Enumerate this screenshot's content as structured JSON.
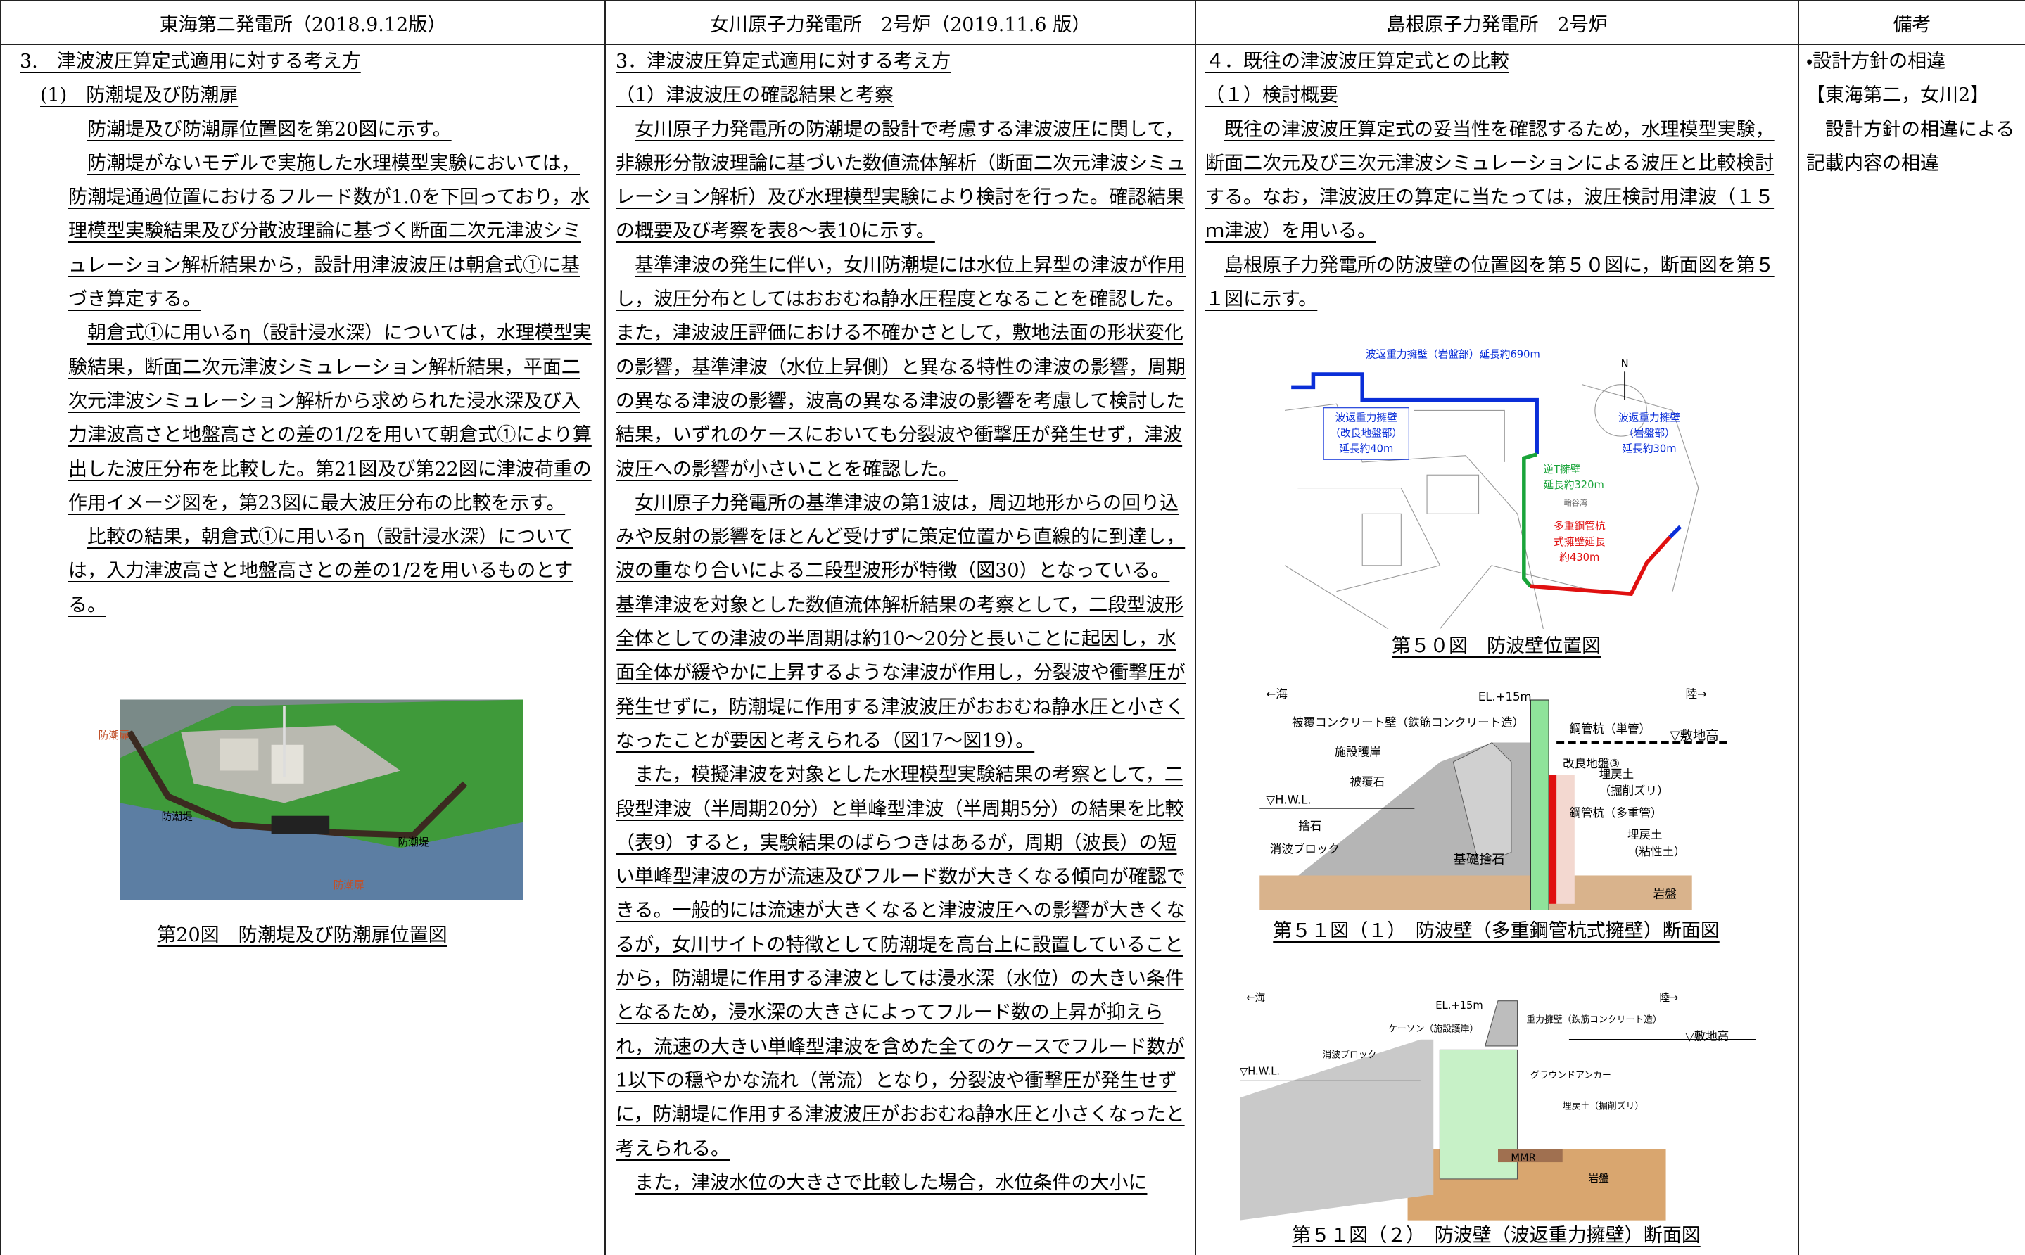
{
  "header": [
    "東海第二発電所（2018.9.12版）",
    "女川原子力発電所　2号炉（2019.11.6 版）",
    "島根原子力発電所　2号炉",
    "備考"
  ],
  "columns": [
    {
      "heading": "3.　津波波圧算定式適用に対する考え方",
      "subheading": "(1)　防潮堤及び防潮扉",
      "paragraphs": [
        "防潮堤及び防潮扉位置図を第20図に示す。",
        "防潮堤がないモデルで実施した水理模型実験においては，防潮堤通過位置におけるフルード数が1.0を下回っており，水理模型実験結果及び分散波理論に基づく断面二次元津波シミュレーション解析結果から，設計用津波波圧は朝倉式①に基づき算定する。",
        "朝倉式①に用いるη（設計浸水深）については，水理模型実験結果，断面二次元津波シミュレーション解析結果，平面二次元津波シミュレーション解析から求められた浸水深及び入力津波高さと地盤高さとの差の1/2を用いて朝倉式①により算出した波圧分布を比較した。第21図及び第22図に津波荷重の作用イメージ図を，第23図に最大波圧分布の比較を示す。",
        "比較の結果，朝倉式①に用いるη（設計浸水深）については，入力津波高さと地盤高さとの差の1/2を用いるものとする。"
      ],
      "figures": [
        {
          "labels": [
            "防潮扉",
            "防潮堤",
            "防潮堤",
            "防潮扉"
          ],
          "caption": "第20図　防潮堤及び防潮扉位置図"
        }
      ]
    },
    {
      "heading": "3．津波波圧算定式適用に対する考え方",
      "subheading": "（1）津波波圧の確認結果と考察",
      "paragraphs": [
        "女川原子力発電所の防潮堤の設計で考慮する津波波圧に関して，非線形分散波理論に基づいた数値流体解析（断面二次元津波シミュレーション解析）及び水理模型実験により検討を行った。確認結果の概要及び考察を表8～表10に示す。",
        "基準津波の発生に伴い，女川防潮堤には水位上昇型の津波が作用し，波圧分布としてはおおむね静水圧程度となることを確認した。また，津波波圧評価における不確かさとして，敷地法面の形状変化の影響，基準津波（水位上昇側）と異なる特性の津波の影響，周期の異なる津波の影響，波高の異なる津波の影響を考慮して検討した結果，いずれのケースにおいても分裂波や衝撃圧が発生せず，津波波圧への影響が小さいことを確認した。",
        "女川原子力発電所の基準津波の第1波は，周辺地形からの回り込みや反射の影響をほとんど受けずに策定位置から直線的に到達し，波の重なり合いによる二段型波形が特徴（図30）となっている。基準津波を対象とした数値流体解析結果の考察として，二段型波形全体としての津波の半周期は約10～20分と長いことに起因し，水面全体が緩やかに上昇するような津波が作用し，分裂波や衝撃圧が発生せずに，防潮堤に作用する津波波圧がおおむね静水圧と小さくなったことが要因と考えられる（図17～図19）。",
        "また，模擬津波を対象とした水理模型実験結果の考察として，二段型津波（半周期20分）と単峰型津波（半周期5分）の結果を比較（表9）すると，実験結果のばらつきはあるが，周期（波長）の短い単峰型津波の方が流速及びフルード数が大きくなる傾向が確認できる。一般的には流速が大きくなると津波波圧への影響が大きくなるが，女川サイトの特徴として防潮堤を高台上に設置していることから，防潮堤に作用する津波としては浸水深（水位）の大きい条件となるため，浸水深の大きさによってフルード数の上昇が抑えられ，流速の大きい単峰型津波を含めた全てのケースでフルード数が1以下の穏やかな流れ（常流）となり，分裂波や衝撃圧が発生せずに，防潮堤に作用する津波波圧がおおむね静水圧と小さくなったと考えられる。",
        "また，津波水位の大きさで比較した場合，水位条件の大小に"
      ],
      "figures": []
    },
    {
      "heading": "４．既往の津波波圧算定式との比較",
      "subheading": "（１）検討概要",
      "paragraphs": [
        "既往の津波波圧算定式の妥当性を確認するため，水理模型実験，断面二次元及び三次元津波シミュレーションによる波圧と比較検討する。なお，津波波圧の算定に当たっては，波圧検討用津波（１５ｍ津波）を用いる。",
        "島根原子力発電所の防波壁の位置図を第５０図に，断面図を第５１図に示す。"
      ],
      "figures": [
        {
          "labels": [
            "波返重力擁壁（岩盤部）延長約690m",
            "N",
            "波返重力擁壁",
            "（改良地盤部）",
            "延長約40m",
            "波返重力擁壁",
            "（岩盤部）",
            "延長約30m",
            "逆T擁壁",
            "延長約320m",
            "輪谷湾",
            "多重鋼管杭",
            "式擁壁延長",
            "約430m"
          ],
          "caption": "第５０図　防波壁位置図"
        },
        {
          "labels": [
            "←海",
            "EL.+15m",
            "陸→",
            "被覆コンクリート壁（鉄筋コンクリート造）",
            "鋼管杭（単管）",
            "▽敷地高",
            "施設護岸",
            "被覆石",
            "改良地盤③",
            "埋戻土",
            "（掘削ズリ）",
            "▽H.W.L.",
            "捨石",
            "消波ブロック",
            "鋼管杭（多重管）",
            "埋戻土",
            "（粘性土）",
            "基礎捨石",
            "岩盤"
          ],
          "caption": "第５１図（１）　防波壁（多重鋼管杭式擁壁）断面図"
        },
        {
          "labels": [
            "←海",
            "EL.+15m",
            "陸→",
            "ケーソン（施設護岸）",
            "重力擁壁（鉄筋コンクリート造）",
            "▽敷地高",
            "消波ブロック",
            "▽H.W.L.",
            "グラウンドアンカー",
            "埋戻土（掘削ズリ）",
            "MMR",
            "岩盤"
          ],
          "caption": "第５１図（２）　防波壁（波返重力擁壁）断面図"
        }
      ]
    },
    {
      "paragraphs": [
        "・設計方針の相違",
        "【東海第二，女川2】",
        "設計方針の相違による記載内容の相違"
      ]
    }
  ]
}
